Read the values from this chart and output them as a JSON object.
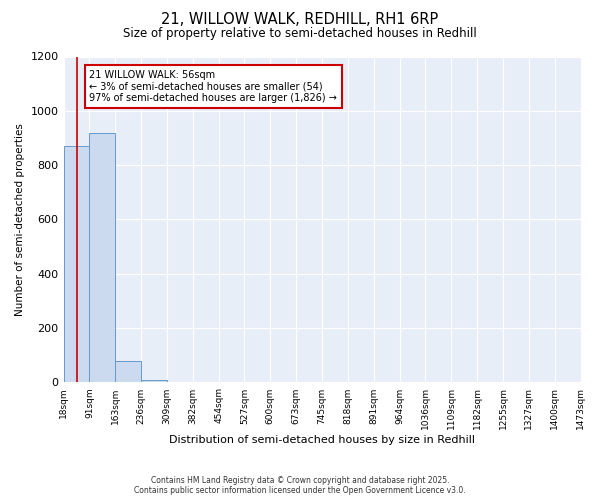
{
  "title": "21, WILLOW WALK, REDHILL, RH1 6RP",
  "subtitle": "Size of property relative to semi-detached houses in Redhill",
  "xlabel": "Distribution of semi-detached houses by size in Redhill",
  "ylabel": "Number of semi-detached properties",
  "bin_labels": [
    "18sqm",
    "91sqm",
    "163sqm",
    "236sqm",
    "309sqm",
    "382sqm",
    "454sqm",
    "527sqm",
    "600sqm",
    "673sqm",
    "745sqm",
    "818sqm",
    "891sqm",
    "964sqm",
    "1036sqm",
    "1109sqm",
    "1182sqm",
    "1255sqm",
    "1327sqm",
    "1400sqm",
    "1473sqm"
  ],
  "bar_heights": [
    870,
    920,
    80,
    8,
    0,
    0,
    0,
    0,
    0,
    0,
    0,
    0,
    0,
    0,
    0,
    0,
    0,
    0,
    0,
    0
  ],
  "n_bins": 20,
  "property_bin": 0.53,
  "annotation_line1": "21 WILLOW WALK: 56sqm",
  "annotation_line2": "← 3% of semi-detached houses are smaller (54)",
  "annotation_line3": "97% of semi-detached houses are larger (1,826) →",
  "red_line_x": 0.53,
  "bar_color": "#ccdaf0",
  "bar_edge_color": "#6699cc",
  "background_color": "#e8eef8",
  "annotation_box_color": "#ffffff",
  "annotation_border_color": "#cc0000",
  "red_line_color": "#cc0000",
  "ylim": [
    0,
    1200
  ],
  "yticks": [
    0,
    200,
    400,
    600,
    800,
    1000,
    1200
  ],
  "footer_line1": "Contains HM Land Registry data © Crown copyright and database right 2025.",
  "footer_line2": "Contains public sector information licensed under the Open Government Licence v3.0."
}
